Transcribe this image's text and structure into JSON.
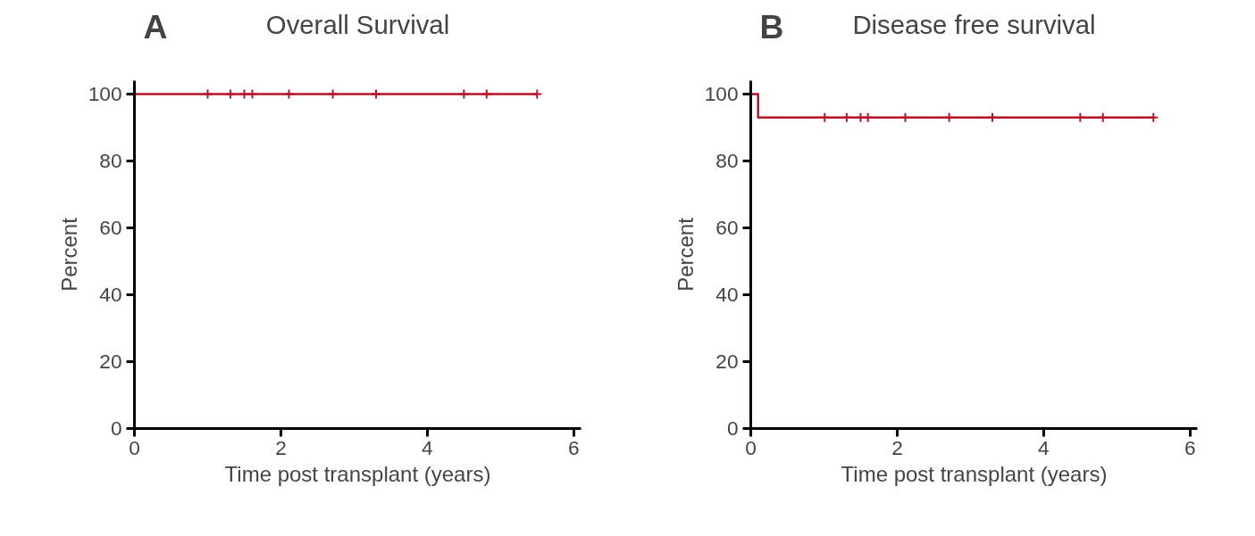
{
  "chart_data": [
    {
      "type": "step",
      "title": "Overall Survival",
      "xlabel": "Time post transplant (years)",
      "ylabel": "Percent",
      "annotations": [
        "A"
      ],
      "xlim": [
        0,
        6.1
      ],
      "ylim": [
        0,
        104
      ],
      "xticks": [
        0,
        2,
        4,
        6
      ],
      "yticks": [
        0,
        20,
        40,
        60,
        80,
        100
      ],
      "grid": false,
      "line_style": "solid",
      "series": [
        {
          "color": "#b5152b",
          "marker": "none",
          "x": [
            0,
            1.0,
            1.31,
            1.5,
            1.61,
            2.11,
            2.71,
            3.3,
            4.5,
            4.81,
            5.5
          ],
          "values": [
            100,
            100,
            100,
            100,
            100,
            100,
            100,
            100,
            100,
            100,
            100
          ]
        },
        {
          "type": "scatter",
          "color": "#b5152b",
          "marker": "cross",
          "x": [
            1.0,
            1.31,
            1.5,
            1.61,
            2.11,
            2.71,
            3.3,
            4.5,
            4.81,
            5.5
          ],
          "values": [
            100,
            100,
            100,
            100,
            100,
            100,
            100,
            100,
            100,
            100
          ]
        }
      ]
    },
    {
      "type": "step",
      "title": "Disease free survival",
      "xlabel": "Time post transplant (years)",
      "ylabel": "Percent",
      "annotations": [
        "B"
      ],
      "xlim": [
        0,
        6.1
      ],
      "ylim": [
        0,
        104
      ],
      "xticks": [
        0,
        2,
        4,
        6
      ],
      "yticks": [
        0,
        20,
        40,
        60,
        80,
        100
      ],
      "grid": false,
      "line_style": "solid",
      "series": [
        {
          "color": "#b5152b",
          "marker": "none",
          "x": [
            0,
            0.1,
            1.01,
            1.31,
            1.5,
            1.6,
            2.11,
            2.71,
            3.3,
            4.5,
            4.81,
            5.5
          ],
          "values": [
            100,
            93,
            93,
            93,
            93,
            93,
            93,
            93,
            93,
            93,
            93,
            93
          ]
        },
        {
          "type": "scatter",
          "color": "#b5152b",
          "marker": "cross",
          "x": [
            1.01,
            1.31,
            1.5,
            1.6,
            2.11,
            2.71,
            3.3,
            4.5,
            4.81,
            5.5
          ],
          "values": [
            93,
            93,
            93,
            93,
            93,
            93,
            93,
            93,
            93,
            93
          ]
        }
      ]
    }
  ]
}
